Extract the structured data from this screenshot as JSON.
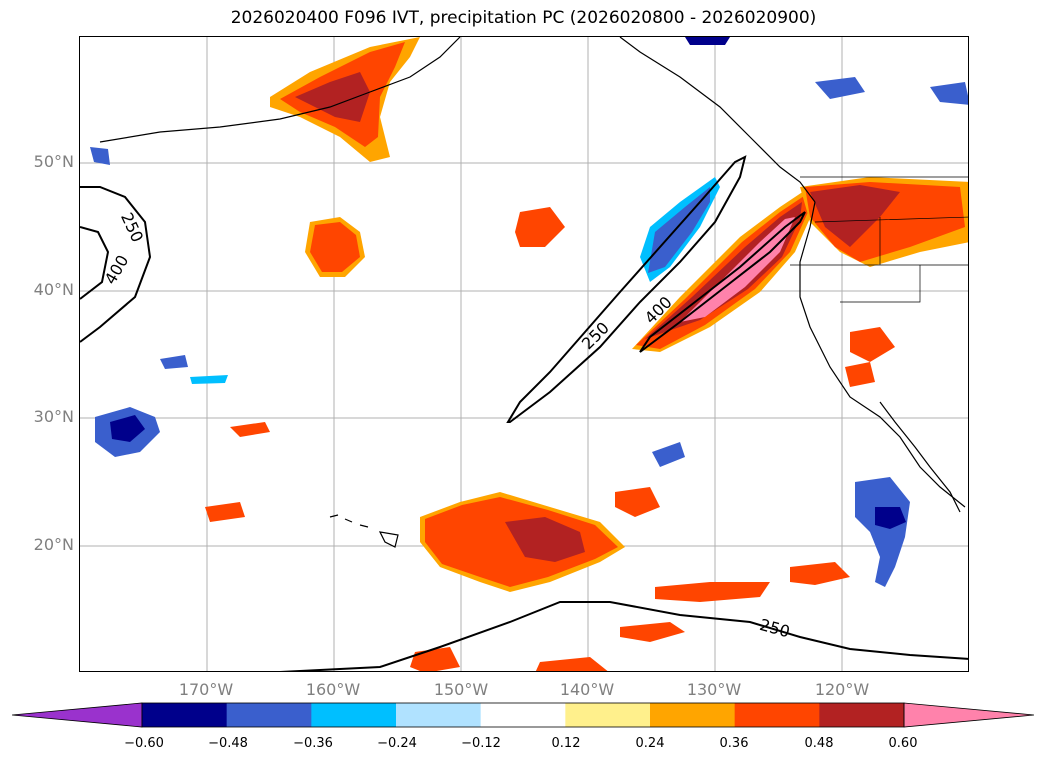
{
  "title": "2026020400 F096 IVT, precipitation PC (2026020800 - 2026020900)",
  "map": {
    "lat_labels": [
      "50°N",
      "40°N",
      "30°N",
      "20°N"
    ],
    "lon_labels": [
      "170°W",
      "160°W",
      "150°W",
      "140°W",
      "130°W",
      "120°W"
    ],
    "ivt_contour_labels": [
      "250",
      "400",
      "250",
      "400",
      "250"
    ]
  },
  "colorbar": {
    "ticks": [
      "−0.60",
      "−0.48",
      "−0.36",
      "−0.24",
      "−0.12",
      "0.12",
      "0.24",
      "0.36",
      "0.48",
      "0.60"
    ],
    "colors": [
      "#9a32cd",
      "#00008b",
      "#3a5fcd",
      "#00bfff",
      "#b0e2ff",
      "#ffffff",
      "#fff08c",
      "#ffa500",
      "#ff4500",
      "#b22222",
      "#ff82ab"
    ]
  },
  "palette": {
    "neg_light": "#b0e2ff",
    "neg_mid": "#00bfff",
    "neg_dark": "#3a5fcd",
    "neg_darkest": "#00008b",
    "pos_light": "#fff08c",
    "pos_mid": "#ffa500",
    "pos_strong": "#ff4500",
    "pos_dark": "#b22222",
    "pos_max": "#ff82ab"
  }
}
